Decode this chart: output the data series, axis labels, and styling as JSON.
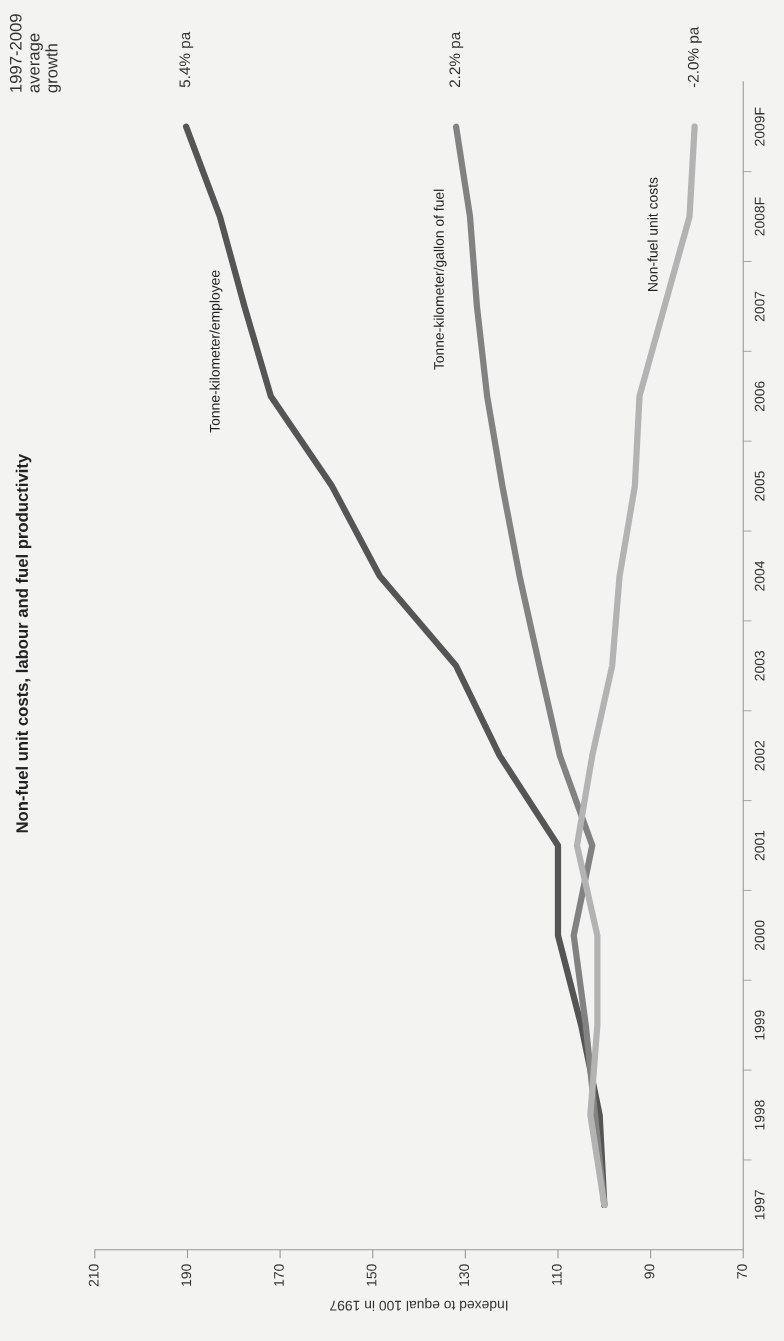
{
  "chart_data": {
    "type": "line",
    "orientation": "horizontal",
    "title": "Non-fuel unit costs, labour and fuel productivity",
    "xlabel": "Indexed to equal 100 in 1997",
    "categories": [
      "2009F",
      "2008F",
      "2007",
      "2006",
      "2005",
      "2004",
      "2003",
      "2002",
      "2001",
      "2000",
      "1999",
      "1998",
      "1997"
    ],
    "series": [
      {
        "name": "Tonne-kilometer/employee",
        "color": "#555555",
        "values": [
          190.3,
          183,
          177.7,
          172,
          158.8,
          148.5,
          132,
          122.6,
          110,
          110,
          105,
          101,
          100
        ]
      },
      {
        "name": "Tonne-kilometer/gallon of fuel",
        "color": "#828282",
        "values": [
          132,
          129,
          127.5,
          125.3,
          122,
          118.3,
          114,
          109.6,
          102.6,
          106.6,
          104,
          102,
          100
        ]
      },
      {
        "name": "Non-fuel unit costs",
        "color": "#b3b3b3",
        "values": [
          80.5,
          81.6,
          87,
          92.4,
          93.4,
          96.7,
          98.3,
          102.6,
          105.9,
          101.5,
          101.5,
          103,
          100
        ]
      }
    ],
    "xlim": [
      210,
      70
    ],
    "xticks": [
      210,
      190,
      170,
      150,
      130,
      110,
      90,
      70
    ],
    "annotations": [
      "1997-2009\naverage\ngrowth",
      {
        "text": "5.4% pa",
        "x": 190.3,
        "y": "2009F"
      },
      {
        "text": "2.2% pa",
        "x": 132,
        "y": "2009F"
      },
      {
        "text": "-2.0% pa",
        "x": 80.5,
        "y": "2009F"
      }
    ],
    "grid": false,
    "legend": false,
    "marker": "none",
    "line_style": "solid"
  }
}
